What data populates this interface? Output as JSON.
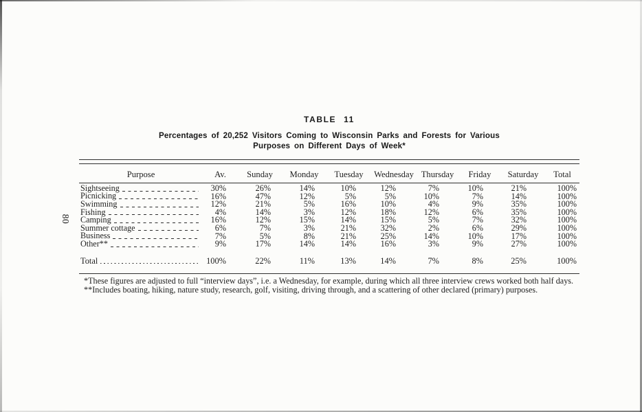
{
  "page": {
    "number": "80"
  },
  "colors": {
    "ink": "#1f1f1f",
    "paper": "#fcfcfa",
    "rule": "#2e2e2e"
  },
  "table": {
    "label": "TABLE 11",
    "title_line1": "Percentages of 20,252 Visitors Coming to Wisconsin Parks and Forests for Various",
    "title_line2": "Purposes on Different Days of Week*",
    "columns": [
      "Purpose",
      "Av.",
      "Sunday",
      "Monday",
      "Tuesday",
      "Wednesday",
      "Thursday",
      "Friday",
      "Saturday",
      "Total"
    ],
    "rows": [
      {
        "purpose": "Sightseeing",
        "values": [
          "30%",
          "26%",
          "14%",
          "10%",
          "12%",
          "7%",
          "10%",
          "21%",
          "100%"
        ]
      },
      {
        "purpose": "Picnicking",
        "values": [
          "16%",
          "47%",
          "12%",
          "5%",
          "5%",
          "10%",
          "7%",
          "14%",
          "100%"
        ]
      },
      {
        "purpose": "Swimming",
        "values": [
          "12%",
          "21%",
          "5%",
          "16%",
          "10%",
          "4%",
          "9%",
          "35%",
          "100%"
        ]
      },
      {
        "purpose": "Fishing",
        "values": [
          "4%",
          "14%",
          "3%",
          "12%",
          "18%",
          "12%",
          "6%",
          "35%",
          "100%"
        ]
      },
      {
        "purpose": "Camping",
        "values": [
          "16%",
          "12%",
          "15%",
          "14%",
          "15%",
          "5%",
          "7%",
          "32%",
          "100%"
        ]
      },
      {
        "purpose": "Summer cottage",
        "values": [
          "6%",
          "7%",
          "3%",
          "21%",
          "32%",
          "2%",
          "6%",
          "29%",
          "100%"
        ]
      },
      {
        "purpose": "Business",
        "values": [
          "7%",
          "5%",
          "8%",
          "21%",
          "25%",
          "14%",
          "10%",
          "17%",
          "100%"
        ]
      },
      {
        "purpose": "Other**",
        "values": [
          "9%",
          "17%",
          "14%",
          "14%",
          "16%",
          "3%",
          "9%",
          "27%",
          "100%"
        ]
      }
    ],
    "total_row": {
      "purpose": "Total",
      "values": [
        "100%",
        "22%",
        "11%",
        "13%",
        "14%",
        "7%",
        "8%",
        "25%",
        "100%"
      ]
    }
  },
  "footnotes": [
    "*These figures are adjusted to full “interview days”, i.e. a Wednesday, for example, during which all three interview crews worked both half days.",
    "**Includes boating, hiking, nature study, research, golf, visiting, driving through, and a scattering of other declared (primary) purposes."
  ]
}
